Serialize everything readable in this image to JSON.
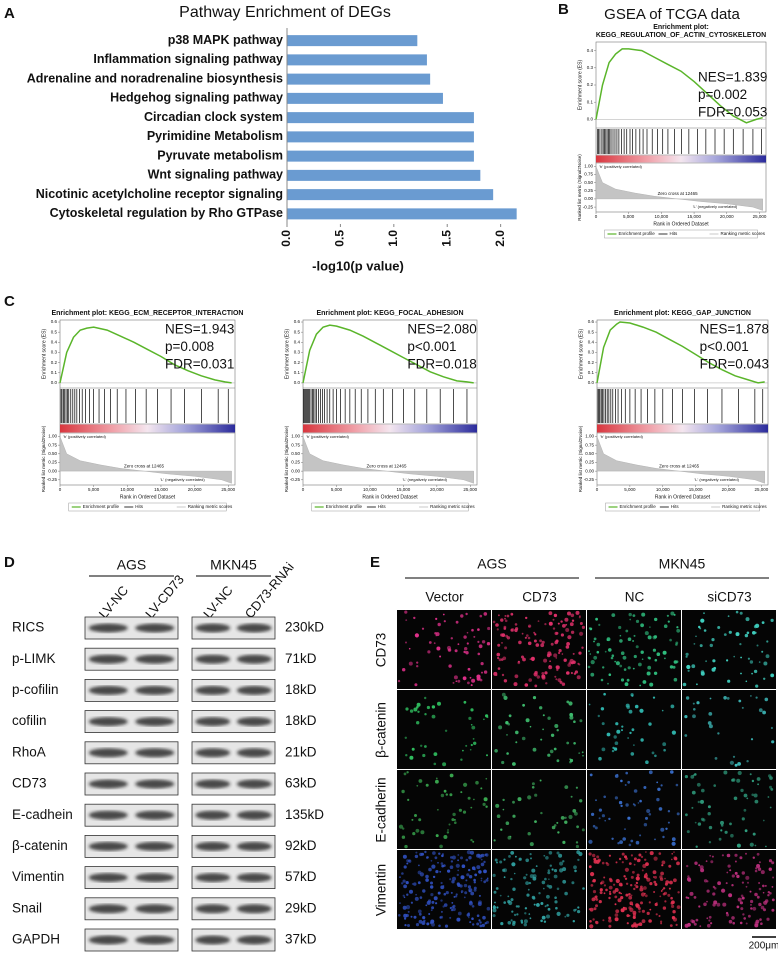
{
  "panel_labels": [
    "A",
    "B",
    "C",
    "D",
    "E"
  ],
  "panel_b_heading": "GSEA of TCGA data",
  "chart_data": [
    {
      "type": "bar",
      "orientation": "horizontal",
      "title": "Pathway Enrichment of DEGs",
      "xlabel": "-log10(p value)",
      "categories": [
        "p38 MAPK pathway",
        "Inflammation signaling pathway",
        "Adrenaline and noradrenaline biosynthesis",
        "Hedgehog signaling pathway",
        "Circadian clock system",
        "Pyrimidine Metabolism",
        "Pyruvate metabolism",
        "Wnt signaling pathway",
        "Nicotinic acetylcholine receptor signaling",
        "Cytoskeletal regulation by Rho GTPase"
      ],
      "values": [
        1.22,
        1.31,
        1.34,
        1.46,
        1.75,
        1.75,
        1.75,
        1.81,
        1.93,
        2.15
      ],
      "color": "#6a9bd1",
      "xlim": [
        0,
        2.2
      ],
      "xticks": [
        {
          "value": 0,
          "label": "0.0"
        },
        0.5,
        {
          "value": 1,
          "label": "1.0"
        },
        1.5,
        {
          "value": 2,
          "label": "2.0"
        }
      ]
    },
    {
      "type": "gsea",
      "title": [
        "Enrichment plot:",
        "KEGG_REGULATION_OF_ACTIN_CYTOSKELETON"
      ],
      "ylabel": "Enrichment score (ES)",
      "color": "#5ab52a",
      "x": [
        0,
        1000,
        2000,
        3000,
        4000,
        5000,
        7000,
        9000,
        11000,
        13000,
        15000,
        17000,
        19000,
        21000,
        23000,
        24500,
        25500
      ],
      "values": [
        0,
        0.2,
        0.33,
        0.38,
        0.41,
        0.41,
        0.4,
        0.36,
        0.32,
        0.28,
        0.22,
        0.15,
        0.08,
        0.02,
        -0.02,
        0.0,
        0.01
      ],
      "ylim": [
        -0.05,
        0.45
      ],
      "yticks": [
        {
          "value": 0,
          "label": "0.0"
        },
        0.1,
        0.2,
        0.3,
        0.4
      ],
      "xlim": [
        0,
        26000
      ],
      "xticks": [
        0,
        {
          "value": 5000,
          "label": "5,000"
        },
        {
          "value": 10000,
          "label": "10,000"
        },
        {
          "value": 15000,
          "label": "15,000"
        },
        {
          "value": 20000,
          "label": "20,000"
        },
        {
          "value": 25000,
          "label": "25,000"
        }
      ],
      "hits": [
        200,
        400,
        600,
        900,
        1100,
        1300,
        1500,
        1700,
        1900,
        2100,
        2300,
        2600,
        2900,
        3200,
        3500,
        3900,
        4300,
        4700,
        5200,
        5600,
        6100,
        6700,
        7200,
        7800,
        8600,
        9400,
        10200,
        11000,
        12000,
        13100,
        14200,
        15500,
        16800,
        18200,
        19600,
        21000,
        22500,
        24000,
        25300
      ],
      "annotations": [
        "NES=1.839",
        "p=0.002",
        "FDR=0.053"
      ],
      "metric": {
        "ylabel": "Ranked list metric (Signal2Noise)",
        "x": [
          0,
          1000,
          3000,
          6000,
          9000,
          12465,
          16000,
          20000,
          24000,
          25500
        ],
        "values": [
          1.0,
          0.5,
          0.3,
          0.18,
          0.08,
          0,
          -0.08,
          -0.15,
          -0.25,
          -0.35
        ],
        "ylim": [
          -0.4,
          1.1
        ],
        "yticks": [
          {
            "value": 1,
            "label": "1.00"
          },
          0.75,
          {
            "value": 0.5,
            "label": "0.50"
          },
          0.25,
          {
            "value": 0,
            "label": "0.00"
          },
          -0.25
        ],
        "labels": [
          "'h' (positively correlated)",
          "Zero cross at 12465",
          "'L' (negatively correlated)"
        ]
      },
      "xlabel": "Rank in Ordered Dataset",
      "legend": [
        "Enrichment profile",
        "Hits",
        "Ranking metric scores"
      ]
    },
    {
      "type": "gsea",
      "title": [
        "Enrichment plot: KEGG_ECM_RECEPTOR_INTERACTION"
      ],
      "ylabel": "Enrichment score (ES)",
      "color": "#5ab52a",
      "x": [
        0,
        1000,
        2000,
        3000,
        4000,
        5000,
        7000,
        9000,
        11000,
        13000,
        15000,
        17000,
        19000,
        21000,
        23000,
        24500,
        25500
      ],
      "values": [
        0,
        0.3,
        0.45,
        0.52,
        0.54,
        0.55,
        0.52,
        0.46,
        0.4,
        0.33,
        0.26,
        0.18,
        0.12,
        0.07,
        0.03,
        0.01,
        0.0
      ],
      "ylim": [
        -0.05,
        0.62
      ],
      "yticks": [
        {
          "value": 0,
          "label": "0.0"
        },
        0.1,
        0.2,
        0.3,
        0.4,
        0.5,
        0.6
      ],
      "xlim": [
        0,
        26000
      ],
      "xticks": [
        0,
        {
          "value": 5000,
          "label": "5,000"
        },
        {
          "value": 10000,
          "label": "10,000"
        },
        {
          "value": 15000,
          "label": "15,000"
        },
        {
          "value": 20000,
          "label": "20,000"
        },
        {
          "value": 25000,
          "label": "25,000"
        }
      ],
      "hits": [
        150,
        300,
        500,
        700,
        900,
        1100,
        1300,
        1600,
        1900,
        2200,
        2500,
        2900,
        3300,
        3800,
        4400,
        5000,
        5800,
        6600,
        7500,
        8500,
        9800,
        11200,
        12800,
        14500,
        16500,
        18500,
        21000,
        23500,
        25000
      ],
      "annotations": [
        "NES=1.943",
        "p=0.008",
        "FDR=0.031"
      ],
      "metric": {
        "ylabel": "Ranked list metric (Signal2Noise)",
        "x": [
          0,
          1000,
          3000,
          6000,
          9000,
          12465,
          16000,
          20000,
          24000,
          25500
        ],
        "values": [
          1.0,
          0.5,
          0.3,
          0.18,
          0.08,
          0,
          -0.08,
          -0.15,
          -0.25,
          -0.35
        ],
        "ylim": [
          -0.4,
          1.1
        ],
        "yticks": [
          {
            "value": 1,
            "label": "1.00"
          },
          0.75,
          {
            "value": 0.5,
            "label": "0.50"
          },
          0.25,
          {
            "value": 0,
            "label": "0.00"
          },
          -0.25
        ],
        "labels": [
          "'h' (positively correlated)",
          "Zero cross at 12465",
          "'L' (negatively correlated)"
        ]
      },
      "xlabel": "Rank in Ordered Dataset",
      "legend": [
        "Enrichment profile",
        "Hits",
        "Ranking metric scores"
      ]
    },
    {
      "type": "gsea",
      "title": [
        "Enrichment plot: KEGG_FOCAL_ADHESION"
      ],
      "ylabel": "Enrichment score (ES)",
      "color": "#5ab52a",
      "x": [
        0,
        1000,
        2000,
        3000,
        4000,
        5000,
        7000,
        9000,
        11000,
        13000,
        15000,
        17000,
        19000,
        21000,
        23000,
        24500,
        25500
      ],
      "values": [
        0,
        0.32,
        0.48,
        0.55,
        0.57,
        0.56,
        0.52,
        0.46,
        0.39,
        0.32,
        0.25,
        0.18,
        0.11,
        0.06,
        0.02,
        0.01,
        0.0
      ],
      "ylim": [
        -0.05,
        0.62
      ],
      "yticks": [
        {
          "value": 0,
          "label": "0.0"
        },
        0.1,
        0.2,
        0.3,
        0.4,
        0.5,
        0.6
      ],
      "xlim": [
        0,
        26000
      ],
      "xticks": [
        0,
        {
          "value": 5000,
          "label": "5,000"
        },
        {
          "value": 10000,
          "label": "10,000"
        },
        {
          "value": 15000,
          "label": "15,000"
        },
        {
          "value": 20000,
          "label": "20,000"
        },
        {
          "value": 25000,
          "label": "25,000"
        }
      ],
      "hits": [
        100,
        250,
        400,
        550,
        700,
        850,
        1000,
        1200,
        1400,
        1600,
        1800,
        2000,
        2300,
        2600,
        2900,
        3200,
        3600,
        4000,
        4500,
        5000,
        5600,
        6300,
        7000,
        7800,
        8700,
        9700,
        10800,
        12000,
        13400,
        15000,
        16700,
        18500,
        20500,
        22500,
        24500
      ],
      "annotations": [
        "NES=2.080",
        "p<0.001",
        "FDR=0.018"
      ],
      "metric": {
        "ylabel": "Ranked list metric (Signal2Noise)",
        "x": [
          0,
          1000,
          3000,
          6000,
          9000,
          12465,
          16000,
          20000,
          24000,
          25500
        ],
        "values": [
          1.0,
          0.5,
          0.3,
          0.18,
          0.08,
          0,
          -0.08,
          -0.15,
          -0.25,
          -0.35
        ],
        "ylim": [
          -0.4,
          1.1
        ],
        "yticks": [
          {
            "value": 1,
            "label": "1.00"
          },
          0.75,
          {
            "value": 0.5,
            "label": "0.50"
          },
          0.25,
          {
            "value": 0,
            "label": "0.00"
          },
          -0.25
        ],
        "labels": [
          "'h' (positively correlated)",
          "Zero cross at 12465",
          "'L' (negatively correlated)"
        ]
      },
      "xlabel": "Rank in Ordered Dataset",
      "legend": [
        "Enrichment profile",
        "Hits",
        "Ranking metric scores"
      ]
    },
    {
      "type": "gsea",
      "title": [
        "Enrichment plot: KEGG_GAP_JUNCTION"
      ],
      "ylabel": "Enrichment score (ES)",
      "color": "#5ab52a",
      "x": [
        0,
        1000,
        2000,
        3000,
        3500,
        5000,
        7000,
        9000,
        11000,
        13000,
        15000,
        17000,
        19000,
        21000,
        23000,
        24500,
        25500
      ],
      "values": [
        0,
        0.35,
        0.52,
        0.58,
        0.6,
        0.59,
        0.55,
        0.5,
        0.43,
        0.36,
        0.28,
        0.2,
        0.13,
        0.07,
        0.03,
        0.0,
        0.01
      ],
      "ylim": [
        -0.05,
        0.62
      ],
      "yticks": [
        {
          "value": 0,
          "label": "0.0"
        },
        0.1,
        0.2,
        0.3,
        0.4,
        0.5,
        0.6
      ],
      "xlim": [
        0,
        26000
      ],
      "xticks": [
        0,
        {
          "value": 5000,
          "label": "5,000"
        },
        {
          "value": 10000,
          "label": "10,000"
        },
        {
          "value": 15000,
          "label": "15,000"
        },
        {
          "value": 20000,
          "label": "20,000"
        },
        {
          "value": 25000,
          "label": "25,000"
        }
      ],
      "hits": [
        150,
        300,
        450,
        650,
        850,
        1050,
        1300,
        1550,
        1800,
        2100,
        2400,
        2800,
        3200,
        3700,
        4300,
        5000,
        5800,
        6700,
        7700,
        8800,
        10000,
        11500,
        13000,
        14800,
        16800,
        19000,
        21500,
        24000,
        25200
      ],
      "annotations": [
        "NES=1.878",
        "p<0.001",
        "FDR=0.043"
      ],
      "metric": {
        "ylabel": "Ranked list metric (Signal2Noise)",
        "x": [
          0,
          1000,
          3000,
          6000,
          9000,
          12465,
          16000,
          20000,
          24000,
          25500
        ],
        "values": [
          1.0,
          0.5,
          0.3,
          0.18,
          0.08,
          0,
          -0.08,
          -0.15,
          -0.25,
          -0.35
        ],
        "ylim": [
          -0.4,
          1.1
        ],
        "yticks": [
          {
            "value": 1,
            "label": "1.00"
          },
          0.75,
          {
            "value": 0.5,
            "label": "0.50"
          },
          0.25,
          {
            "value": 0,
            "label": "0.00"
          },
          -0.25
        ],
        "labels": [
          "'h' (positively correlated)",
          "Zero cross at 12465",
          "'L' (negatively correlated)"
        ]
      },
      "xlabel": "Rank in Ordered Dataset",
      "legend": [
        "Enrichment profile",
        "Hits",
        "Ranking metric scores"
      ]
    }
  ],
  "blot": {
    "groups": [
      {
        "name": "AGS",
        "lanes": [
          "LV-NC",
          "LV-CD73"
        ]
      },
      {
        "name": "MKN45",
        "lanes": [
          "LV-NC",
          "CD73-RNAi"
        ]
      }
    ],
    "rows": [
      {
        "protein": "RICS",
        "size": "230kD"
      },
      {
        "protein": "p-LIMK",
        "size": "71kD"
      },
      {
        "protein": "p-cofilin",
        "size": "18kD"
      },
      {
        "protein": "cofilin",
        "size": "18kD"
      },
      {
        "protein": "RhoA",
        "size": "21kD"
      },
      {
        "protein": "CD73",
        "size": "63kD"
      },
      {
        "protein": "E-cadhein",
        "size": "135kD"
      },
      {
        "protein": "β-catenin",
        "size": "92kD"
      },
      {
        "protein": "Vimentin",
        "size": "57kD"
      },
      {
        "protein": "Snail",
        "size": "29kD"
      },
      {
        "protein": "GAPDH",
        "size": "37kD"
      }
    ]
  },
  "if_panel": {
    "groups": [
      {
        "name": "AGS",
        "columns": [
          "Vector",
          "CD73"
        ]
      },
      {
        "name": "MKN45",
        "columns": [
          "NC",
          "siCD73"
        ]
      }
    ],
    "rows": [
      "CD73",
      "β-catenin",
      "E-cadherin",
      "Vimentin"
    ],
    "scale_bar": "200μm"
  }
}
